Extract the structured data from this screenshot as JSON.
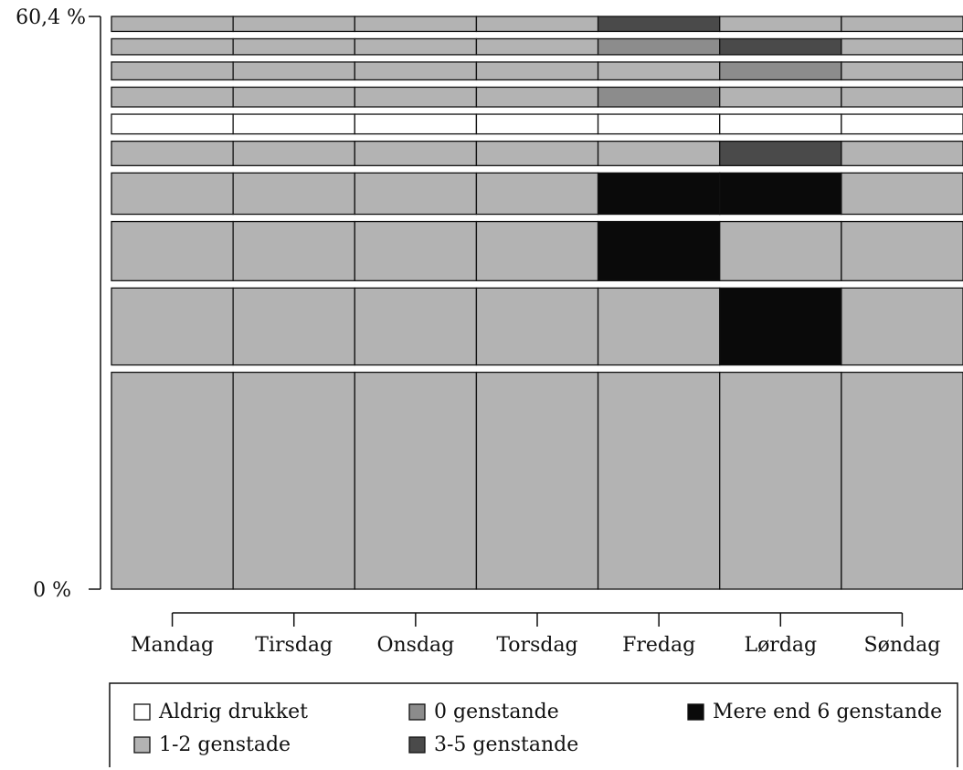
{
  "chart_data": {
    "type": "bar",
    "title": "",
    "xlabel": "",
    "ylabel": "",
    "y_axis": {
      "ticks": [
        "60,4 %",
        "0 %"
      ],
      "ylim": [
        0,
        60.4
      ],
      "unit": "%"
    },
    "categories": [
      "Mandag",
      "Tirsdag",
      "Onsdag",
      "Torsdag",
      "Fredag",
      "Lørdag",
      "Søndag"
    ],
    "colors": {
      "Aldrig drukket": "#ffffff",
      "0 genstande": "#8c8c8c",
      "1-2 genstade": "#b3b3b3",
      "3-5 genstande": "#4a4a4a",
      "Mere end 6 genstande": "#0a0a0a"
    },
    "legend": {
      "position": "bottom",
      "entries": [
        "Aldrig drukket",
        "0 genstande",
        "Mere end 6 genstande",
        "1-2 genstade",
        "3-5 genstande"
      ]
    },
    "rows": [
      {
        "share": 23.1,
        "values": [
          "1-2 genstade",
          "1-2 genstade",
          "1-2 genstade",
          "1-2 genstade",
          "1-2 genstade",
          "1-2 genstade",
          "1-2 genstade"
        ]
      },
      {
        "share": 8.2,
        "values": [
          "1-2 genstade",
          "1-2 genstade",
          "1-2 genstade",
          "1-2 genstade",
          "1-2 genstade",
          "Mere end 6 genstande",
          "1-2 genstade"
        ]
      },
      {
        "share": 6.3,
        "values": [
          "1-2 genstade",
          "1-2 genstade",
          "1-2 genstade",
          "1-2 genstade",
          "Mere end 6 genstande",
          "1-2 genstade",
          "1-2 genstade"
        ]
      },
      {
        "share": 4.4,
        "values": [
          "1-2 genstade",
          "1-2 genstade",
          "1-2 genstade",
          "1-2 genstade",
          "Mere end 6 genstande",
          "Mere end 6 genstande",
          "1-2 genstade"
        ]
      },
      {
        "share": 2.6,
        "values": [
          "1-2 genstade",
          "1-2 genstade",
          "1-2 genstade",
          "1-2 genstade",
          "1-2 genstade",
          "3-5 genstande",
          "1-2 genstade"
        ]
      },
      {
        "share": 2.1,
        "values": [
          "Aldrig drukket",
          "Aldrig drukket",
          "Aldrig drukket",
          "Aldrig drukket",
          "Aldrig drukket",
          "Aldrig drukket",
          "Aldrig drukket"
        ]
      },
      {
        "share": 2.1,
        "values": [
          "1-2 genstade",
          "1-2 genstade",
          "1-2 genstade",
          "1-2 genstade",
          "0 genstande",
          "1-2 genstade",
          "1-2 genstade"
        ]
      },
      {
        "share": 1.9,
        "values": [
          "1-2 genstade",
          "1-2 genstade",
          "1-2 genstade",
          "1-2 genstade",
          "1-2 genstade",
          "0 genstande",
          "1-2 genstade"
        ]
      },
      {
        "share": 1.7,
        "values": [
          "1-2 genstade",
          "1-2 genstade",
          "1-2 genstade",
          "1-2 genstade",
          "0 genstande",
          "3-5 genstande",
          "1-2 genstade"
        ]
      },
      {
        "share": 1.6,
        "values": [
          "1-2 genstade",
          "1-2 genstade",
          "1-2 genstade",
          "1-2 genstade",
          "3-5 genstande",
          "1-2 genstade",
          "1-2 genstade"
        ]
      }
    ]
  }
}
